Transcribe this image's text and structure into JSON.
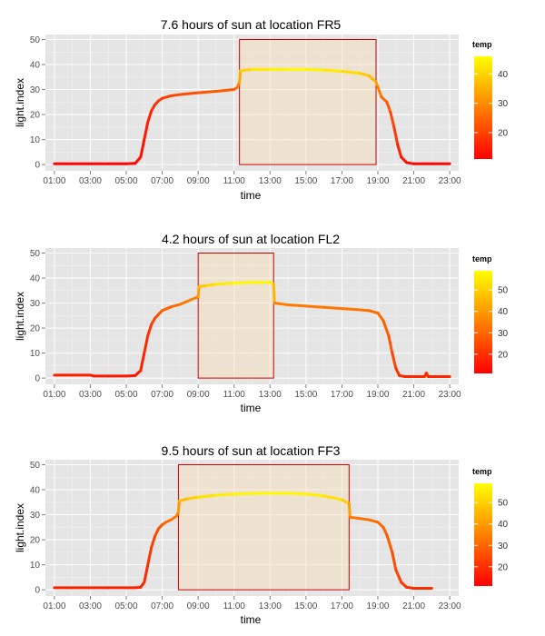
{
  "chart_data": [
    {
      "type": "line",
      "title": "7.6 hours of sun at location FR5",
      "xlabel": "time",
      "ylabel": "light.index",
      "xlim": [
        0.5,
        23.5
      ],
      "ylim": [
        -2.5,
        52
      ],
      "x_ticks": [
        1,
        3,
        5,
        7,
        9,
        11,
        13,
        15,
        17,
        19,
        21,
        23
      ],
      "x_tick_labels": [
        "01:00",
        "03:00",
        "05:00",
        "07:00",
        "09:00",
        "11:00",
        "13:00",
        "15:00",
        "17:00",
        "19:00",
        "21:00",
        "23:00"
      ],
      "y_ticks": [
        0,
        10,
        20,
        30,
        40,
        50
      ],
      "y_tick_labels": [
        "0",
        "10",
        "20",
        "30",
        "40",
        "50"
      ],
      "grid": true,
      "sun_rect": {
        "x_start": 11.3,
        "x_end": 18.9,
        "y_start": 0,
        "y_end": 50
      },
      "legend": {
        "title": "temp",
        "ticks": [
          20,
          30,
          40
        ],
        "range": [
          11,
          46
        ],
        "position": "right"
      },
      "series": [
        {
          "x": [
            1,
            2,
            3,
            4,
            5,
            5.5,
            5.8,
            6.0,
            6.2,
            6.4,
            6.6,
            6.8,
            7.0,
            7.5,
            8,
            9,
            10,
            11,
            11.2,
            11.3,
            11.35,
            12,
            13,
            14,
            15,
            16,
            17,
            18,
            18.5,
            18.9,
            19.0,
            19.2,
            19.5,
            19.7,
            19.9,
            20.1,
            20.3,
            20.6,
            21,
            22,
            23
          ],
          "y": [
            0.3,
            0.3,
            0.3,
            0.3,
            0.3,
            0.5,
            3,
            10,
            17,
            21.5,
            24,
            25.5,
            26.5,
            27.5,
            28.0,
            28.7,
            29.3,
            30.0,
            31,
            33,
            37.5,
            38,
            38,
            38,
            38,
            37.8,
            37.3,
            36.5,
            35.5,
            33,
            31,
            27,
            25,
            21,
            15,
            8,
            3,
            0.8,
            0.3,
            0.3,
            0.3
          ],
          "temp": [
            12,
            12,
            12,
            12,
            12,
            12,
            13,
            14,
            15,
            16,
            17,
            18,
            19,
            20,
            21,
            22,
            23,
            24,
            26,
            30,
            38,
            42,
            44,
            45,
            45,
            44,
            42,
            40,
            38,
            35,
            30,
            26,
            24,
            22,
            20,
            17,
            15,
            13,
            12,
            12,
            12
          ]
        }
      ]
    },
    {
      "type": "line",
      "title": "4.2 hours of sun at location FL2",
      "xlabel": "time",
      "ylabel": "light.index",
      "xlim": [
        0.5,
        23.5
      ],
      "ylim": [
        -2.5,
        52
      ],
      "x_ticks": [
        1,
        3,
        5,
        7,
        9,
        11,
        13,
        15,
        17,
        19,
        21,
        23
      ],
      "x_tick_labels": [
        "01:00",
        "03:00",
        "05:00",
        "07:00",
        "09:00",
        "11:00",
        "13:00",
        "15:00",
        "17:00",
        "19:00",
        "21:00",
        "23:00"
      ],
      "y_ticks": [
        0,
        10,
        20,
        30,
        40,
        50
      ],
      "y_tick_labels": [
        "0",
        "10",
        "20",
        "30",
        "40",
        "50"
      ],
      "grid": true,
      "sun_rect": {
        "x_start": 9.0,
        "x_end": 13.2,
        "y_start": 0,
        "y_end": 50
      },
      "legend": {
        "title": "temp",
        "ticks": [
          20,
          30,
          40,
          50
        ],
        "range": [
          11,
          59
        ],
        "position": "right"
      },
      "series": [
        {
          "x": [
            1,
            2,
            3,
            3.2,
            4,
            5,
            5.5,
            5.8,
            6.0,
            6.2,
            6.4,
            6.6,
            6.8,
            7.0,
            7.5,
            8,
            8.5,
            9.0,
            9.05,
            9.5,
            10,
            11,
            12,
            13,
            13.2,
            13.25,
            14,
            15,
            16,
            17,
            18,
            18.5,
            19,
            19.3,
            19.6,
            19.8,
            20.0,
            20.2,
            20.5,
            21,
            21.6,
            21.7,
            21.8,
            22,
            23
          ],
          "y": [
            1.2,
            1.2,
            1.2,
            0.8,
            0.8,
            0.8,
            1.0,
            3,
            10,
            17,
            21.5,
            24,
            25.5,
            27,
            28.5,
            29.5,
            31,
            32.5,
            36.5,
            37,
            37.5,
            38,
            38.3,
            38.3,
            37.5,
            30,
            29.3,
            28.8,
            28.3,
            27.8,
            27.3,
            27,
            26,
            23,
            17,
            10,
            4,
            1.0,
            0.6,
            0.6,
            0.6,
            2,
            0.6,
            0.6,
            0.6
          ],
          "temp": [
            16,
            16,
            16,
            15,
            15,
            15,
            15,
            16,
            18,
            20,
            22,
            24,
            26,
            28,
            30,
            32,
            34,
            36,
            45,
            50,
            54,
            57,
            58,
            58,
            55,
            35,
            34,
            34,
            33,
            33,
            33,
            32,
            31,
            30,
            28,
            26,
            22,
            20,
            19,
            18,
            18,
            20,
            18,
            18,
            18
          ]
        }
      ]
    },
    {
      "type": "line",
      "title": "9.5 hours of sun at location FF3",
      "xlabel": "time",
      "ylabel": "light.index",
      "xlim": [
        0.5,
        23.5
      ],
      "ylim": [
        -2.5,
        52
      ],
      "x_ticks": [
        1,
        3,
        5,
        7,
        9,
        11,
        13,
        15,
        17,
        19,
        21,
        23
      ],
      "x_tick_labels": [
        "01:00",
        "03:00",
        "05:00",
        "07:00",
        "09:00",
        "11:00",
        "13:00",
        "15:00",
        "17:00",
        "19:00",
        "21:00",
        "23:00"
      ],
      "y_ticks": [
        0,
        10,
        20,
        30,
        40,
        50
      ],
      "y_tick_labels": [
        "0",
        "10",
        "20",
        "30",
        "40",
        "50"
      ],
      "grid": true,
      "sun_rect": {
        "x_start": 7.9,
        "x_end": 17.4,
        "y_start": 0,
        "y_end": 50
      },
      "legend": {
        "title": "temp",
        "ticks": [
          20,
          30,
          40,
          50
        ],
        "range": [
          11,
          59
        ],
        "position": "right"
      },
      "series": [
        {
          "x": [
            1,
            2,
            3,
            4,
            5,
            5.5,
            5.8,
            6.0,
            6.2,
            6.4,
            6.6,
            6.8,
            7.0,
            7.2,
            7.5,
            7.8,
            7.9,
            7.95,
            8.5,
            9,
            10,
            11,
            12,
            13,
            14,
            15,
            16,
            17,
            17.4,
            17.45,
            18,
            18.5,
            19,
            19.3,
            19.5,
            19.8,
            20.0,
            20.3,
            20.6,
            21,
            22
          ],
          "y": [
            0.8,
            0.8,
            0.8,
            0.8,
            0.8,
            0.8,
            1.0,
            3,
            10,
            17,
            21.5,
            24.5,
            26,
            27,
            28,
            29.5,
            31,
            35.5,
            36.5,
            37,
            37.8,
            38.3,
            38.5,
            38.6,
            38.6,
            38.3,
            37.5,
            36,
            34.5,
            29,
            28.5,
            28,
            27,
            25,
            22,
            15,
            8,
            3,
            1.0,
            0.6,
            0.6
          ],
          "temp": [
            17,
            17,
            17,
            17,
            17,
            17,
            17,
            18,
            20,
            22,
            24,
            26,
            28,
            30,
            31,
            33,
            35,
            44,
            48,
            52,
            55,
            57,
            58,
            58,
            58,
            57,
            55,
            52,
            48,
            33,
            32,
            32,
            31,
            30,
            29,
            27,
            24,
            22,
            20,
            19,
            19
          ]
        }
      ]
    }
  ]
}
